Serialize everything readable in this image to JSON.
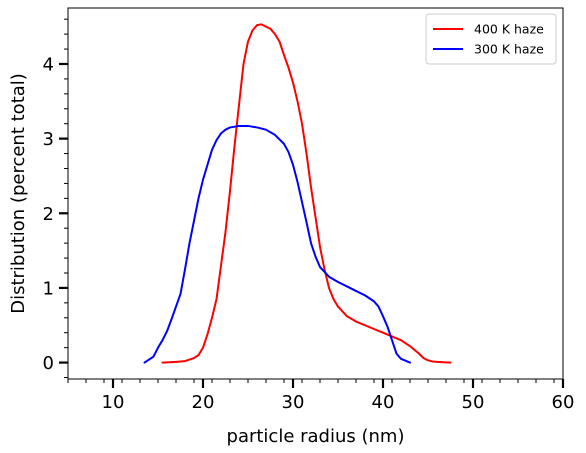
{
  "chart_data": {
    "type": "line",
    "title": "",
    "xlabel": "particle radius (nm)",
    "ylabel": "Distribution (percent total)",
    "xlim": [
      5,
      60
    ],
    "ylim": [
      -0.22,
      4.75
    ],
    "xticks": [
      10,
      20,
      30,
      40,
      50,
      60
    ],
    "yticks": [
      0,
      1,
      2,
      3,
      4
    ],
    "grid": false,
    "legend_position": "top-right",
    "series": [
      {
        "name": "400 K haze",
        "color": "#ff0000",
        "x": [
          15.5,
          17.0,
          18.0,
          19.0,
          19.5,
          20.0,
          20.5,
          21.0,
          21.5,
          22.0,
          22.5,
          23.0,
          23.5,
          24.0,
          24.5,
          25.0,
          25.5,
          26.0,
          26.5,
          27.0,
          27.5,
          28.0,
          28.5,
          29.0,
          29.5,
          30.0,
          30.5,
          31.0,
          31.5,
          32.0,
          32.5,
          33.0,
          33.5,
          34.0,
          34.5,
          35.0,
          36.0,
          37.0,
          38.0,
          39.0,
          40.0,
          41.0,
          42.0,
          43.0,
          44.0,
          44.5,
          45.0,
          45.5,
          46.0,
          47.5
        ],
        "y": [
          0.0,
          0.01,
          0.02,
          0.06,
          0.1,
          0.2,
          0.38,
          0.6,
          0.85,
          1.3,
          1.75,
          2.3,
          2.9,
          3.45,
          4.0,
          4.3,
          4.45,
          4.52,
          4.53,
          4.5,
          4.47,
          4.4,
          4.3,
          4.12,
          3.95,
          3.75,
          3.5,
          3.2,
          2.8,
          2.35,
          1.95,
          1.55,
          1.25,
          1.0,
          0.85,
          0.75,
          0.62,
          0.55,
          0.5,
          0.45,
          0.4,
          0.35,
          0.3,
          0.22,
          0.12,
          0.06,
          0.03,
          0.015,
          0.01,
          0.0
        ]
      },
      {
        "name": "300 K haze",
        "color": "#0000ff",
        "x": [
          13.5,
          14.5,
          15.0,
          15.5,
          16.0,
          16.5,
          17.0,
          17.5,
          18.0,
          18.5,
          19.0,
          19.5,
          20.0,
          20.5,
          21.0,
          21.5,
          22.0,
          22.5,
          23.0,
          24.0,
          25.0,
          26.0,
          27.0,
          28.0,
          29.0,
          29.5,
          30.0,
          30.5,
          31.0,
          31.5,
          32.0,
          32.5,
          33.0,
          34.0,
          35.0,
          36.0,
          37.0,
          38.0,
          39.0,
          39.5,
          40.0,
          40.5,
          41.0,
          41.5,
          42.0,
          43.0
        ],
        "y": [
          0.0,
          0.08,
          0.2,
          0.3,
          0.42,
          0.58,
          0.75,
          0.92,
          1.25,
          1.6,
          1.9,
          2.2,
          2.45,
          2.65,
          2.85,
          2.98,
          3.07,
          3.12,
          3.15,
          3.17,
          3.17,
          3.15,
          3.12,
          3.05,
          2.93,
          2.82,
          2.65,
          2.42,
          2.15,
          1.88,
          1.6,
          1.42,
          1.28,
          1.15,
          1.08,
          1.02,
          0.96,
          0.9,
          0.82,
          0.75,
          0.62,
          0.48,
          0.3,
          0.12,
          0.05,
          0.0
        ]
      }
    ]
  }
}
